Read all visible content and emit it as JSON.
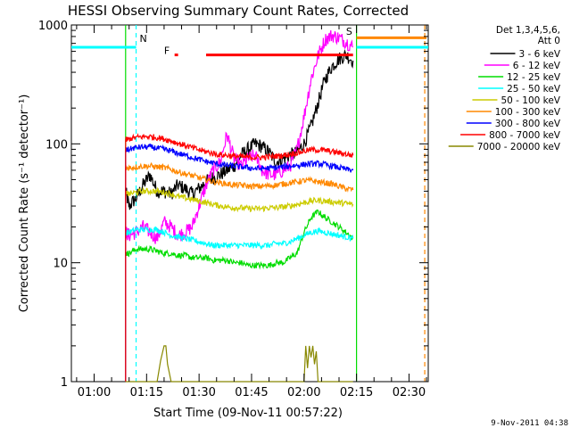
{
  "chart_data": {
    "type": "line",
    "title": "HESSI Observing Summary Count Rates, Corrected",
    "xlabel": "Start Time (09-Nov-11 00:57:22)",
    "ylabel": "Corrected Count Rate (s⁻¹ detector⁻¹)",
    "footer": "9-Nov-2011 04:38",
    "x_tick_labels": [
      "01:00",
      "01:15",
      "01:30",
      "01:45",
      "02:00",
      "02:15",
      "02:30"
    ],
    "x_ticks_minutes": [
      60,
      75,
      90,
      105,
      120,
      135,
      150
    ],
    "xlim_minutes": [
      53.5,
      155.5
    ],
    "y_scale": "log",
    "ylim": [
      1,
      1000
    ],
    "y_tick_labels": [
      "1",
      "10",
      "100",
      "1000"
    ],
    "y_ticks": [
      1,
      10,
      100,
      1000
    ],
    "grid": false,
    "legend_position": "right",
    "legend_header": [
      "Det 1,3,4,5,6,",
      "Att 0"
    ],
    "series": [
      {
        "name": "3 - 6 keV",
        "color": "#000000",
        "x": [
          69,
          70,
          72,
          74,
          76,
          78,
          80,
          82,
          84,
          86,
          88,
          90,
          92,
          94,
          96,
          98,
          100,
          102,
          104,
          106,
          108,
          110,
          112,
          114,
          116,
          118,
          120,
          122,
          124,
          126,
          128,
          130,
          132,
          134
        ],
        "y": [
          40,
          30,
          35,
          45,
          55,
          40,
          40,
          38,
          45,
          42,
          38,
          42,
          48,
          52,
          55,
          60,
          65,
          80,
          90,
          100,
          95,
          85,
          70,
          75,
          80,
          85,
          100,
          140,
          220,
          350,
          450,
          520,
          560,
          500
        ]
      },
      {
        "name": "6 - 12 keV",
        "color": "#ff00ff",
        "x": [
          69,
          70,
          72,
          74,
          76,
          78,
          80,
          82,
          84,
          86,
          88,
          90,
          92,
          94,
          96,
          98,
          100,
          102,
          104,
          106,
          108,
          110,
          112,
          114,
          116,
          118,
          120,
          122,
          124,
          126,
          128,
          130,
          132,
          134
        ],
        "y": [
          18,
          17,
          18,
          20,
          18,
          16,
          22,
          20,
          17,
          18,
          20,
          30,
          45,
          60,
          70,
          120,
          75,
          65,
          75,
          80,
          60,
          55,
          55,
          60,
          65,
          90,
          170,
          350,
          550,
          750,
          820,
          780,
          720,
          650
        ]
      },
      {
        "name": "12 - 25 keV",
        "color": "#00dd00",
        "x": [
          69,
          70,
          72,
          74,
          76,
          78,
          80,
          82,
          84,
          86,
          88,
          90,
          92,
          94,
          96,
          98,
          100,
          102,
          104,
          106,
          108,
          110,
          112,
          114,
          116,
          118,
          120,
          122,
          124,
          126,
          128,
          130,
          132,
          134
        ],
        "y": [
          12,
          12,
          13,
          13,
          13,
          12.5,
          12,
          12,
          11.5,
          11.5,
          11,
          11,
          11,
          10.5,
          10.5,
          10.5,
          10,
          10,
          9.5,
          9.5,
          9.5,
          9.5,
          10,
          10,
          11,
          12,
          18,
          24,
          27,
          24,
          22,
          20,
          18,
          16
        ]
      },
      {
        "name": "25 - 50 keV",
        "color": "#00ffff",
        "x": [
          69,
          70,
          72,
          74,
          76,
          78,
          80,
          82,
          84,
          86,
          88,
          90,
          92,
          94,
          96,
          98,
          100,
          102,
          104,
          106,
          108,
          110,
          112,
          114,
          116,
          118,
          120,
          122,
          124,
          126,
          128,
          130,
          132,
          134
        ],
        "y": [
          18,
          18,
          19,
          19,
          19,
          19,
          18,
          17,
          16.5,
          16,
          15.5,
          15,
          14.5,
          14,
          14,
          14,
          14,
          14,
          14,
          14,
          14,
          14,
          14.5,
          14.5,
          15,
          16,
          17,
          18,
          18.5,
          18,
          17.5,
          17,
          16.5,
          16
        ]
      },
      {
        "name": "50 - 100 keV",
        "color": "#cccc00",
        "x": [
          69,
          70,
          72,
          74,
          76,
          78,
          80,
          82,
          84,
          86,
          88,
          90,
          92,
          94,
          96,
          98,
          100,
          102,
          104,
          106,
          108,
          110,
          112,
          114,
          116,
          118,
          120,
          122,
          124,
          126,
          128,
          130,
          132,
          134
        ],
        "y": [
          38,
          38,
          39,
          40,
          40,
          40,
          39,
          38,
          36,
          35,
          34,
          33,
          32,
          31,
          30,
          29.5,
          29,
          29,
          28.5,
          28.5,
          28.5,
          29,
          29,
          29.5,
          30,
          31,
          32,
          33,
          33.5,
          33,
          32.5,
          32,
          31.5,
          31
        ]
      },
      {
        "name": "100 - 300 keV",
        "color": "#ff8800",
        "x": [
          69,
          70,
          72,
          74,
          76,
          78,
          80,
          82,
          84,
          86,
          88,
          90,
          92,
          94,
          96,
          98,
          100,
          102,
          104,
          106,
          108,
          110,
          112,
          114,
          116,
          118,
          120,
          122,
          124,
          126,
          128,
          130,
          132,
          134
        ],
        "y": [
          62,
          63,
          64,
          65,
          65,
          64,
          63,
          61,
          58,
          56,
          54,
          52,
          50,
          48,
          47,
          46,
          45,
          45,
          44,
          44,
          44,
          44.5,
          45,
          46,
          47,
          48,
          49,
          49,
          48,
          47,
          46,
          44,
          42,
          41
        ]
      },
      {
        "name": "300 - 800 keV",
        "color": "#0000ff",
        "x": [
          69,
          70,
          72,
          74,
          76,
          78,
          80,
          82,
          84,
          86,
          88,
          90,
          92,
          94,
          96,
          98,
          100,
          102,
          104,
          106,
          108,
          110,
          112,
          114,
          116,
          118,
          120,
          122,
          124,
          126,
          128,
          130,
          132,
          134
        ],
        "y": [
          88,
          90,
          93,
          94,
          94,
          92,
          90,
          87,
          83,
          80,
          77,
          74,
          71,
          69,
          67,
          66,
          65,
          64,
          63,
          62,
          62,
          62.5,
          63,
          64,
          65,
          66,
          67,
          68,
          68,
          67,
          65,
          63,
          61,
          60
        ]
      },
      {
        "name": "800 - 7000 keV",
        "color": "#ff0000",
        "x": [
          69,
          70,
          72,
          74,
          76,
          78,
          80,
          82,
          84,
          86,
          88,
          90,
          92,
          94,
          96,
          98,
          100,
          102,
          104,
          106,
          108,
          110,
          112,
          114,
          116,
          118,
          120,
          122,
          124,
          126,
          128,
          130,
          132,
          134
        ],
        "y": [
          108,
          110,
          113,
          115,
          115,
          113,
          110,
          106,
          101,
          97,
          93,
          89,
          86,
          83,
          81,
          80,
          79,
          78,
          77,
          77,
          77,
          78,
          79,
          80,
          82,
          84,
          87,
          89,
          89,
          88,
          86,
          84,
          82,
          80
        ]
      },
      {
        "name": "7000 - 20000 keV",
        "color": "#888800",
        "x": [
          69,
          78,
          79,
          80,
          80.5,
          81,
          82,
          120,
          120.5,
          121,
          121.5,
          122,
          122.5,
          123,
          123.5,
          124,
          134
        ],
        "y": [
          1,
          1,
          1.5,
          2,
          2,
          1.4,
          1,
          1,
          2,
          1.3,
          2,
          1.6,
          2,
          1.4,
          1.8,
          1,
          1
        ]
      }
    ],
    "attenuator_lines": [
      {
        "color": "#00ffff",
        "x": [
          53.5,
          72
        ],
        "y": 650
      },
      {
        "color": "#00ffff",
        "x": [
          135,
          155.5
        ],
        "y": 650
      },
      {
        "color": "#ff8800",
        "x": [
          135,
          155
        ],
        "y": 780
      }
    ],
    "flag_bars": [
      {
        "color": "#ff0000",
        "x": [
          83,
          84
        ],
        "y": 560
      },
      {
        "color": "#ff0000",
        "x": [
          92,
          134
        ],
        "y": 560
      }
    ],
    "vertical_lines": [
      {
        "x": 69,
        "color": "#00dd00",
        "style": "solid"
      },
      {
        "x": 72,
        "color": "#00ffff",
        "style": "dashed"
      },
      {
        "x": 135,
        "color": "#00dd00",
        "style": "solid"
      },
      {
        "x": 154.5,
        "color": "#ff8800",
        "style": "dashed"
      }
    ],
    "annotations": [
      {
        "text": "N",
        "x": 73,
        "y": 720,
        "color": "#00ffff"
      },
      {
        "text": "F",
        "x": 80,
        "y": 570,
        "color": "#ff0000"
      },
      {
        "text": "S",
        "x": 132,
        "y": 830,
        "color": "#ff8800"
      }
    ]
  }
}
